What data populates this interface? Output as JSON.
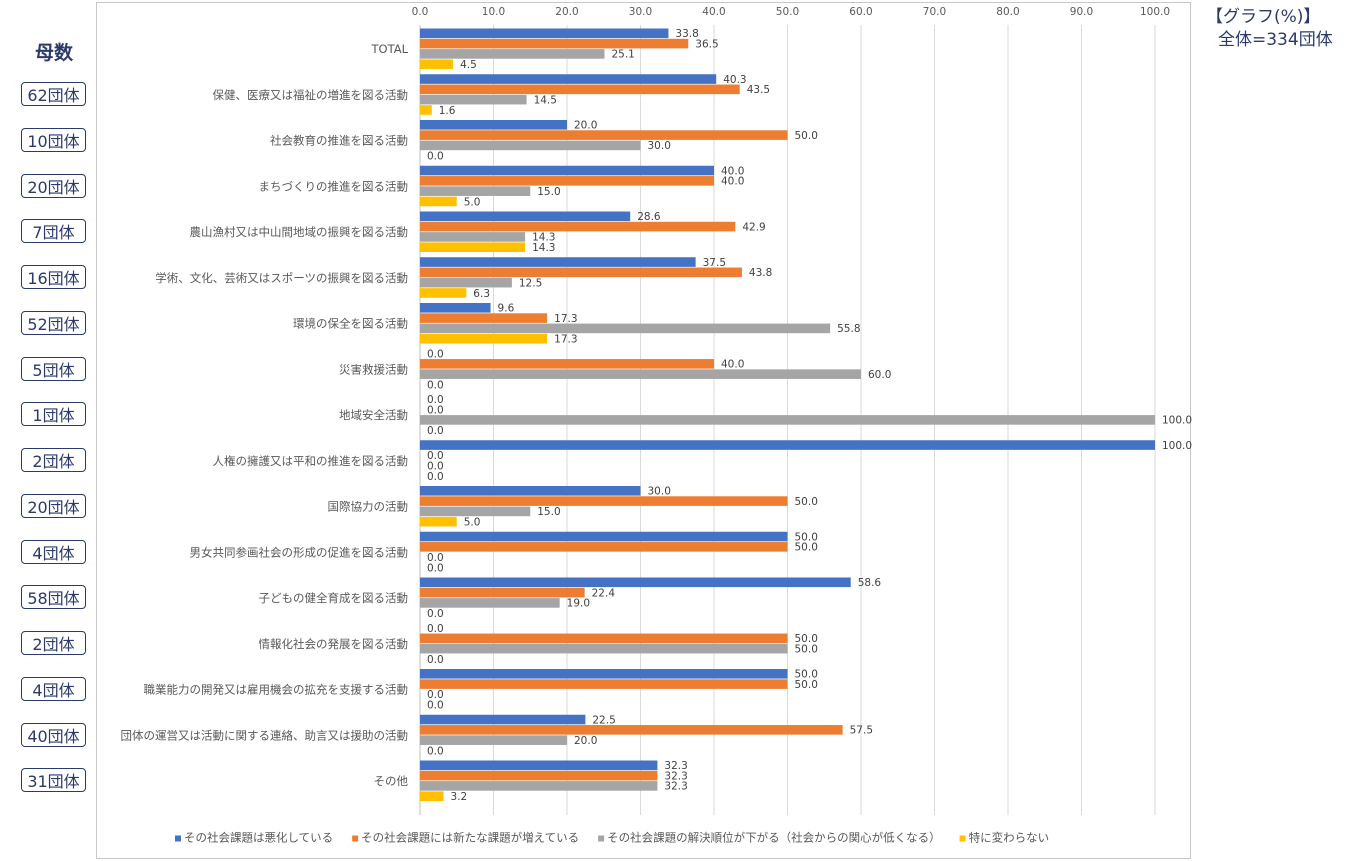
{
  "page": {
    "boshu_label": "母数",
    "counts": [
      "62団体",
      "10団体",
      "20団体",
      "7団体",
      "16団体",
      "52団体",
      "5団体",
      "1団体",
      "2団体",
      "20団体",
      "4団体",
      "58団体",
      "2団体",
      "4団体",
      "40団体",
      "31団体"
    ],
    "note_title": "【グラフ(%)】",
    "note_total": "全体=334団体"
  },
  "chart_data": {
    "type": "bar",
    "orientation": "horizontal",
    "categories": [
      "TOTAL",
      "保健、医療又は福祉の増進を図る活動",
      "社会教育の推進を図る活動",
      "まちづくりの推進を図る活動",
      "農山漁村又は中山間地域の振興を図る活動",
      "学術、文化、芸術又はスポーツの振興を図る活動",
      "環境の保全を図る活動",
      "災害救援活動",
      "地域安全活動",
      "人権の擁護又は平和の推進を図る活動",
      "国際協力の活動",
      "男女共同参画社会の形成の促進を図る活動",
      "子どもの健全育成を図る活動",
      "情報化社会の発展を図る活動",
      "職業能力の開発又は雇用機会の拡充を支援する活動",
      "団体の運営又は活動に関する連絡、助言又は援助の活動",
      "その他"
    ],
    "series": [
      {
        "name": "その社会課題は悪化している",
        "color": "#4472c4",
        "values": [
          33.8,
          40.3,
          20.0,
          40.0,
          28.6,
          37.5,
          9.6,
          0.0,
          0.0,
          100.0,
          30.0,
          50.0,
          58.6,
          0.0,
          50.0,
          22.5,
          32.3
        ]
      },
      {
        "name": "その社会課題には新たな課題が増えている",
        "color": "#ed7d31",
        "values": [
          36.5,
          43.5,
          50.0,
          40.0,
          42.9,
          43.8,
          17.3,
          40.0,
          0.0,
          0.0,
          50.0,
          50.0,
          22.4,
          50.0,
          50.0,
          57.5,
          32.3
        ]
      },
      {
        "name": "その社会課題の解決順位が下がる（社会からの関心が低くなる）",
        "color": "#a5a5a5",
        "values": [
          25.1,
          14.5,
          30.0,
          15.0,
          14.3,
          12.5,
          55.8,
          60.0,
          100.0,
          0.0,
          15.0,
          0.0,
          19.0,
          50.0,
          0.0,
          20.0,
          32.3
        ]
      },
      {
        "name": "特に変わらない",
        "color": "#ffc000",
        "values": [
          4.5,
          1.6,
          0.0,
          5.0,
          14.3,
          6.3,
          17.3,
          0.0,
          0.0,
          0.0,
          5.0,
          0.0,
          0.0,
          0.0,
          0.0,
          0.0,
          3.2
        ]
      }
    ],
    "xlim": [
      0,
      100
    ],
    "x_ticks": [
      "0.0",
      "10.0",
      "20.0",
      "30.0",
      "40.0",
      "50.0",
      "60.0",
      "70.0",
      "80.0",
      "90.0",
      "100.0"
    ],
    "axis_position": "top",
    "grid": true,
    "legend": "bottom"
  }
}
